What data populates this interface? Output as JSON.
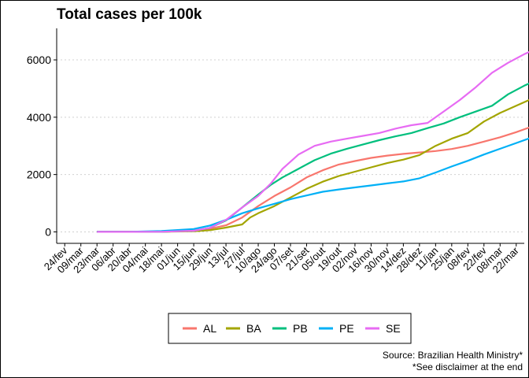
{
  "chart_data": {
    "type": "line",
    "title": "Total cases per 100k",
    "xlabel": "",
    "ylabel": "",
    "x_ticks": [
      "24/fev",
      "09/mar",
      "23/mar",
      "06/abr",
      "20/abr",
      "04/mai",
      "18/mai",
      "01/jun",
      "15/jun",
      "29/jun",
      "13/jul",
      "27/jul",
      "10/ago",
      "24/ago",
      "07/set",
      "21/set",
      "05/out",
      "19/out",
      "02/nov",
      "16/nov",
      "30/nov",
      "14/dez",
      "28/dez",
      "11/jan",
      "25/jan",
      "08/fev",
      "22/fev",
      "08/mar",
      "22/mar"
    ],
    "y_ticks": [
      0,
      2000,
      4000,
      6000
    ],
    "ylim": [
      -400,
      7100
    ],
    "grid": "horizontal dotted",
    "legend_position": "bottom",
    "series": [
      {
        "name": "AL",
        "color": "#F8766D",
        "points": [
          [
            2,
            0
          ],
          [
            4,
            0
          ],
          [
            6,
            5
          ],
          [
            8,
            40
          ],
          [
            9,
            110
          ],
          [
            10,
            230
          ],
          [
            11,
            500
          ],
          [
            12,
            900
          ],
          [
            13,
            1250
          ],
          [
            14,
            1550
          ],
          [
            15,
            1900
          ],
          [
            16,
            2150
          ],
          [
            17,
            2350
          ],
          [
            18,
            2470
          ],
          [
            19,
            2580
          ],
          [
            20,
            2660
          ],
          [
            21,
            2720
          ],
          [
            22,
            2770
          ],
          [
            23,
            2820
          ],
          [
            24,
            2890
          ],
          [
            25,
            3000
          ],
          [
            26,
            3150
          ],
          [
            27,
            3300
          ],
          [
            28,
            3480
          ],
          [
            29,
            3680
          ],
          [
            30,
            3900
          ],
          [
            30.6,
            4020
          ]
        ]
      },
      {
        "name": "BA",
        "color": "#A3A500",
        "points": [
          [
            2,
            0
          ],
          [
            4,
            0
          ],
          [
            6,
            5
          ],
          [
            8,
            20
          ],
          [
            9,
            60
          ],
          [
            10,
            150
          ],
          [
            11,
            260
          ],
          [
            11.5,
            500
          ],
          [
            12,
            650
          ],
          [
            13,
            900
          ],
          [
            14,
            1200
          ],
          [
            15,
            1500
          ],
          [
            16,
            1750
          ],
          [
            17,
            1950
          ],
          [
            18,
            2100
          ],
          [
            19,
            2250
          ],
          [
            20,
            2400
          ],
          [
            21,
            2520
          ],
          [
            22,
            2680
          ],
          [
            23,
            3000
          ],
          [
            24,
            3250
          ],
          [
            25,
            3450
          ],
          [
            26,
            3850
          ],
          [
            27,
            4150
          ],
          [
            28,
            4400
          ],
          [
            29,
            4650
          ],
          [
            30,
            4900
          ],
          [
            30.6,
            4730
          ]
        ]
      },
      {
        "name": "PB",
        "color": "#00BF7D",
        "points": [
          [
            2,
            0
          ],
          [
            4,
            0
          ],
          [
            6,
            5
          ],
          [
            8,
            40
          ],
          [
            9,
            140
          ],
          [
            10,
            400
          ],
          [
            11,
            850
          ],
          [
            12,
            1300
          ],
          [
            12.8,
            1650
          ],
          [
            13.5,
            1900
          ],
          [
            14.5,
            2200
          ],
          [
            15.5,
            2500
          ],
          [
            16.5,
            2730
          ],
          [
            17.5,
            2900
          ],
          [
            18.5,
            3050
          ],
          [
            19.5,
            3200
          ],
          [
            20.5,
            3330
          ],
          [
            21.5,
            3450
          ],
          [
            22.5,
            3620
          ],
          [
            23.5,
            3780
          ],
          [
            24.5,
            4000
          ],
          [
            25.5,
            4200
          ],
          [
            26.5,
            4400
          ],
          [
            27.5,
            4800
          ],
          [
            28.5,
            5100
          ],
          [
            29.5,
            5350
          ],
          [
            30.6,
            5630
          ]
        ]
      },
      {
        "name": "PE",
        "color": "#00B0F6",
        "points": [
          [
            2,
            0
          ],
          [
            4,
            5
          ],
          [
            6,
            30
          ],
          [
            8,
            100
          ],
          [
            9,
            220
          ],
          [
            10,
            420
          ],
          [
            11,
            650
          ],
          [
            12,
            820
          ],
          [
            13,
            980
          ],
          [
            14,
            1140
          ],
          [
            15,
            1270
          ],
          [
            16,
            1400
          ],
          [
            17,
            1480
          ],
          [
            18,
            1550
          ],
          [
            19,
            1620
          ],
          [
            20,
            1690
          ],
          [
            21,
            1760
          ],
          [
            22,
            1870
          ],
          [
            23,
            2070
          ],
          [
            24,
            2280
          ],
          [
            25,
            2480
          ],
          [
            26,
            2700
          ],
          [
            27,
            2900
          ],
          [
            28,
            3100
          ],
          [
            29,
            3300
          ],
          [
            30,
            3500
          ],
          [
            30.6,
            3200
          ]
        ]
      },
      {
        "name": "SE",
        "color": "#E76BF3",
        "points": [
          [
            2,
            0
          ],
          [
            4,
            0
          ],
          [
            6,
            5
          ],
          [
            8,
            40
          ],
          [
            9,
            140
          ],
          [
            10,
            420
          ],
          [
            11,
            850
          ],
          [
            12,
            1250
          ],
          [
            12.8,
            1700
          ],
          [
            13.5,
            2200
          ],
          [
            14.5,
            2700
          ],
          [
            15.5,
            3000
          ],
          [
            16.5,
            3150
          ],
          [
            17.5,
            3250
          ],
          [
            18.5,
            3350
          ],
          [
            19.5,
            3450
          ],
          [
            20.5,
            3600
          ],
          [
            21.5,
            3720
          ],
          [
            22.5,
            3800
          ],
          [
            23.5,
            4200
          ],
          [
            24.5,
            4600
          ],
          [
            25.5,
            5050
          ],
          [
            26.5,
            5550
          ],
          [
            27.5,
            5900
          ],
          [
            28.5,
            6200
          ],
          [
            29.5,
            6450
          ],
          [
            30.6,
            6700
          ]
        ]
      }
    ],
    "caption": [
      "Source: Brazilian Health Ministry*",
      "*See disclaimer at the end"
    ]
  }
}
